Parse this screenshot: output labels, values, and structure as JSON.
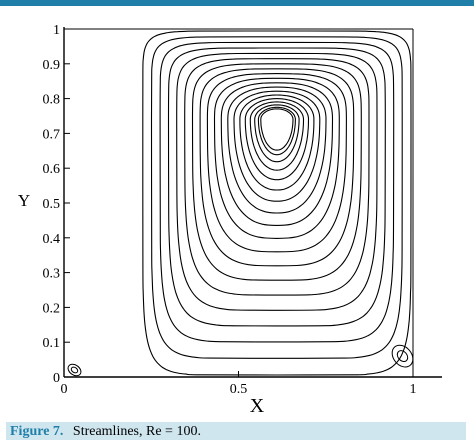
{
  "chart_data": {
    "type": "contour",
    "xlabel": "X",
    "ylabel": "Y",
    "xlim": [
      0,
      1
    ],
    "ylim": [
      0,
      1
    ],
    "x_ticks": [
      "0",
      "0.5",
      "1"
    ],
    "y_ticks": [
      "0",
      "0.1",
      "0.2",
      "0.3",
      "0.4",
      "0.5",
      "0.6",
      "0.7",
      "0.8",
      "0.9",
      "1"
    ],
    "primary_vortex_center": [
      0.61,
      0.74
    ],
    "primary_contours": 19,
    "secondary_vortices": [
      {
        "name": "bottom-left",
        "center": [
          0.03,
          0.02
        ]
      },
      {
        "name": "bottom-right",
        "center": [
          0.97,
          0.06
        ]
      }
    ],
    "grid": false
  },
  "caption": {
    "label": "Figure 7.",
    "text": "Streamlines, Re = 100."
  },
  "colors": {
    "accent": "#1f7fa8",
    "caption_bg": "#cfe6ef",
    "lines": "#000000"
  }
}
